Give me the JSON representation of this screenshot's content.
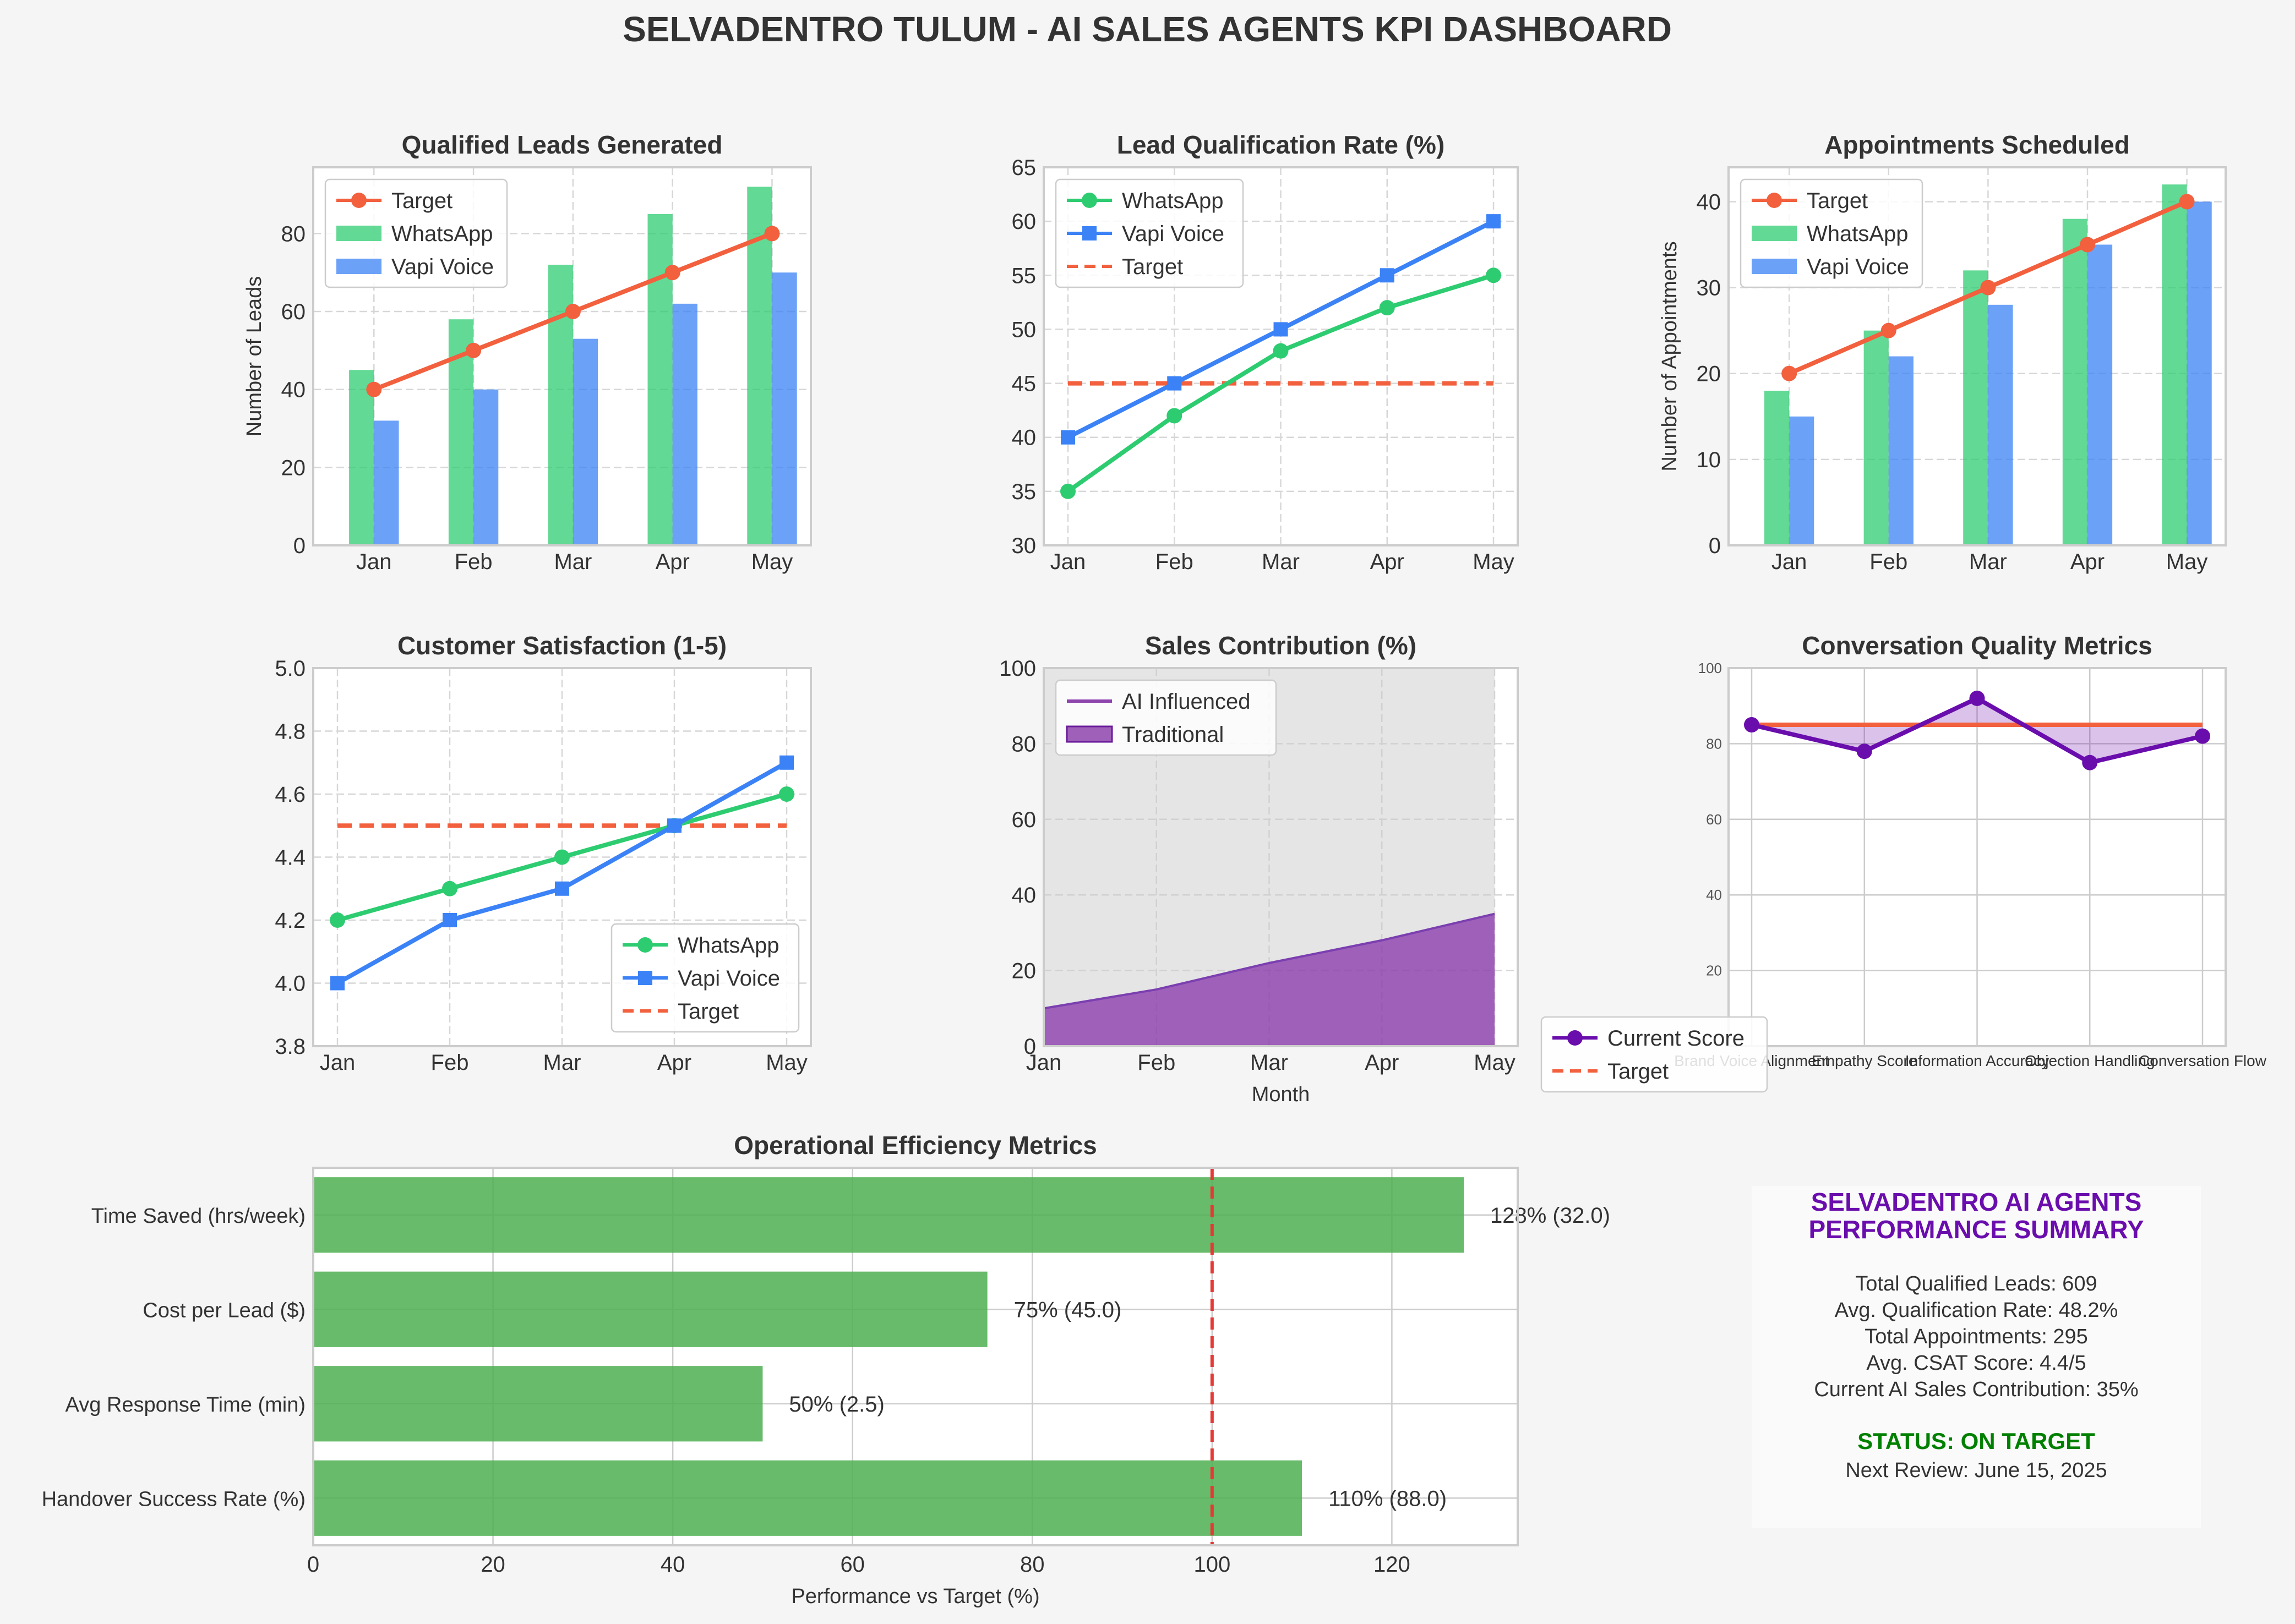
{
  "title": "SELVADENTRO TULUM - AI SALES AGENTS KPI DASHBOARD",
  "colors": {
    "whatsapp": "#2ecc71",
    "vapi": "#3b82f6",
    "target": "#f2603e",
    "purple": "#8e44ad",
    "radar": "#6a0dad",
    "ops_bar": "#4caf50",
    "ops_line": "#e53935",
    "status_green": "#008000",
    "text": "#333333"
  },
  "chart_data": [
    {
      "id": "leads",
      "type": "bar",
      "title": "Qualified Leads Generated",
      "xlabel": "",
      "ylabel": "Number of Leads",
      "categories": [
        "Jan",
        "Feb",
        "Mar",
        "Apr",
        "May"
      ],
      "ylim": [
        0,
        97
      ],
      "yticks": [
        "0",
        "20",
        "40",
        "60",
        "80"
      ],
      "series": [
        {
          "name": "WhatsApp",
          "kind": "bar",
          "values": [
            45,
            58,
            72,
            85,
            92
          ]
        },
        {
          "name": "Vapi Voice",
          "kind": "bar",
          "values": [
            32,
            40,
            53,
            62,
            70
          ]
        },
        {
          "name": "Target",
          "kind": "line",
          "values": [
            40,
            50,
            60,
            70,
            80
          ]
        }
      ],
      "legend": [
        "Target",
        "WhatsApp",
        "Vapi Voice"
      ],
      "legend_position": "top-left",
      "grid": true
    },
    {
      "id": "qualrate",
      "type": "line",
      "title": "Lead Qualification Rate (%)",
      "xlabel": "",
      "ylabel": "",
      "categories": [
        "Jan",
        "Feb",
        "Mar",
        "Apr",
        "May"
      ],
      "ylim": [
        30,
        65
      ],
      "yticks": [
        "30",
        "35",
        "40",
        "45",
        "50",
        "55",
        "60",
        "65"
      ],
      "series": [
        {
          "name": "WhatsApp",
          "kind": "line",
          "values": [
            35,
            42,
            48,
            52,
            55
          ]
        },
        {
          "name": "Vapi Voice",
          "kind": "line",
          "values": [
            40,
            45,
            50,
            55,
            60
          ]
        },
        {
          "name": "Target",
          "kind": "dashed",
          "values": [
            45,
            45,
            45,
            45,
            45
          ]
        }
      ],
      "legend": [
        "WhatsApp",
        "Vapi Voice",
        "Target"
      ],
      "legend_position": "top-left",
      "grid": true
    },
    {
      "id": "appts",
      "type": "bar",
      "title": "Appointments Scheduled",
      "xlabel": "",
      "ylabel": "Number of Appointments",
      "categories": [
        "Jan",
        "Feb",
        "Mar",
        "Apr",
        "May"
      ],
      "ylim": [
        0,
        44
      ],
      "yticks": [
        "0",
        "10",
        "20",
        "30",
        "40"
      ],
      "series": [
        {
          "name": "WhatsApp",
          "kind": "bar",
          "values": [
            18,
            25,
            32,
            38,
            42
          ]
        },
        {
          "name": "Vapi Voice",
          "kind": "bar",
          "values": [
            15,
            22,
            28,
            35,
            40
          ]
        },
        {
          "name": "Target",
          "kind": "line",
          "values": [
            20,
            25,
            30,
            35,
            40
          ]
        }
      ],
      "legend": [
        "Target",
        "WhatsApp",
        "Vapi Voice"
      ],
      "legend_position": "top-left",
      "grid": true
    },
    {
      "id": "csat",
      "type": "line",
      "title": "Customer Satisfaction (1-5)",
      "xlabel": "",
      "ylabel": "",
      "categories": [
        "Jan",
        "Feb",
        "Mar",
        "Apr",
        "May"
      ],
      "ylim": [
        3.8,
        5.0
      ],
      "yticks": [
        "3.8",
        "4.0",
        "4.2",
        "4.4",
        "4.6",
        "4.8",
        "5.0"
      ],
      "series": [
        {
          "name": "WhatsApp",
          "kind": "line",
          "values": [
            4.2,
            4.3,
            4.4,
            4.5,
            4.6
          ]
        },
        {
          "name": "Vapi Voice",
          "kind": "line",
          "values": [
            4.0,
            4.2,
            4.3,
            4.5,
            4.7
          ]
        },
        {
          "name": "Target",
          "kind": "dashed",
          "values": [
            4.5,
            4.5,
            4.5,
            4.5,
            4.5
          ]
        }
      ],
      "legend": [
        "WhatsApp",
        "Vapi Voice",
        "Target"
      ],
      "legend_position": "bottom-right",
      "grid": true
    },
    {
      "id": "salescontrib",
      "type": "area",
      "title": "Sales Contribution (%)",
      "xlabel": "Month",
      "ylabel": "",
      "categories": [
        "Jan",
        "Feb",
        "Mar",
        "Apr",
        "May"
      ],
      "ylim": [
        0,
        100
      ],
      "yticks": [
        "0",
        "20",
        "40",
        "60",
        "80",
        "100"
      ],
      "series": [
        {
          "name": "AI Influenced",
          "values": [
            10,
            15,
            22,
            28,
            35
          ]
        },
        {
          "name": "Traditional",
          "values": [
            90,
            85,
            78,
            72,
            65
          ]
        }
      ],
      "legend": [
        "AI Influenced",
        "Traditional"
      ],
      "legend_position": "top-left",
      "grid": true
    },
    {
      "id": "convquality",
      "type": "line",
      "title": "Conversation Quality Metrics",
      "categories": [
        "Brand Voice Alignment",
        "Empathy Score",
        "Information Accuracy",
        "Objection Handling",
        "Conversation Flow"
      ],
      "ylim": [
        0,
        100
      ],
      "yticks": [
        "20",
        "40",
        "60",
        "80",
        "100"
      ],
      "series": [
        {
          "name": "Current Score",
          "values": [
            85,
            78,
            92,
            75,
            82
          ]
        },
        {
          "name": "Target",
          "values": [
            85,
            85,
            85,
            85,
            85
          ]
        }
      ],
      "legend": [
        "Current Score",
        "Target"
      ],
      "legend_position": "lower-left outside",
      "grid": true
    },
    {
      "id": "opseff",
      "type": "bar",
      "orientation": "horizontal",
      "title": "Operational Efficiency Metrics",
      "xlabel": "Performance vs Target (%)",
      "ylabel": "",
      "categories": [
        "Time Saved (hrs/week)",
        "Cost per Lead ($)",
        "Avg Response Time (min)",
        "Handover Success Rate (%)"
      ],
      "values": [
        128,
        75,
        50,
        110
      ],
      "labels": [
        "128% (32.0)",
        "75% (45.0)",
        "50% (2.5)",
        "110% (88.0)"
      ],
      "xlim": [
        0,
        134
      ],
      "xticks": [
        "0",
        "20",
        "40",
        "60",
        "80",
        "100",
        "120"
      ],
      "reference_line": 100,
      "grid": true
    }
  ],
  "summary": {
    "title_line1": "SELVADENTRO AI AGENTS",
    "title_line2": "PERFORMANCE SUMMARY",
    "lines": [
      "Total Qualified Leads: 609",
      "Avg. Qualification Rate: 48.2%",
      "Total Appointments: 295",
      "Avg. CSAT Score: 4.4/5",
      "Current AI Sales Contribution: 35%"
    ],
    "status": "STATUS: ON TARGET",
    "next_review": "Next Review: June 15, 2025"
  }
}
